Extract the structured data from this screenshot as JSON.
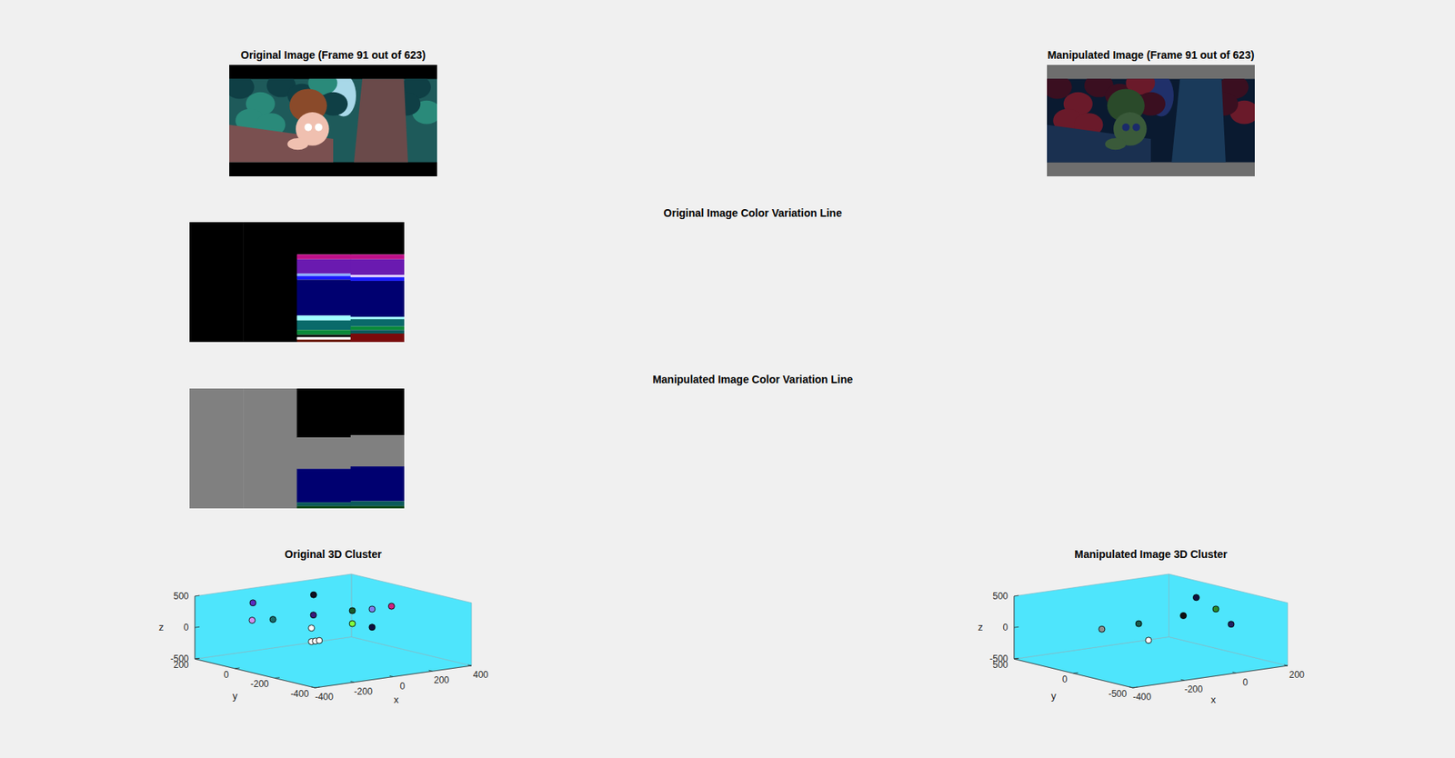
{
  "chart_data": [
    {
      "type": "image",
      "title": "Original Image (Frame 91 out of 623)"
    },
    {
      "type": "image",
      "title": "Manipulated Image (Frame 91 out of 623)"
    },
    {
      "type": "color_strip",
      "title": "Original Image Color Variation Line",
      "ylim": [
        0,
        100
      ],
      "tick_labels": false,
      "columns": [
        {
          "colors": [
            "#000000"
          ],
          "values": [
            100
          ]
        },
        {
          "colors": [
            "#000000"
          ],
          "values": [
            100
          ]
        },
        {
          "colors": [
            "#000000",
            "#c0108a",
            "#6a1ab0",
            "#8ab0ff",
            "#1a1aff",
            "#000070",
            "#a0ffff",
            "#0a6a6a",
            "#0a8a3a",
            "#000000",
            "#ffffff",
            "#6a1a0a"
          ],
          "values": [
            27,
            4,
            12,
            2,
            3,
            30,
            4,
            8,
            4,
            2,
            2,
            2
          ]
        },
        {
          "colors": [
            "#000000",
            "#c0108a",
            "#6a1ab0",
            "#e0d0ff",
            "#1a1aff",
            "#000070",
            "#a0ffff",
            "#0a6a6a",
            "#0a8a3a",
            "#0a5a5a",
            "#7a0a0a"
          ],
          "values": [
            27,
            4,
            13,
            2,
            3,
            30,
            2,
            6,
            3,
            3,
            7
          ]
        }
      ]
    },
    {
      "type": "color_strip",
      "title": "Manipulated Image Color Variation Line",
      "ylim": [
        0,
        100
      ],
      "tick_labels": false,
      "columns": [
        {
          "colors": [
            "#808080"
          ],
          "values": [
            100
          ]
        },
        {
          "colors": [
            "#808080"
          ],
          "values": [
            100
          ]
        },
        {
          "colors": [
            "#000000",
            "#808080",
            "#000070",
            "#0a5a5a",
            "#0a4a1a"
          ],
          "values": [
            41,
            26,
            28,
            3,
            2
          ]
        },
        {
          "colors": [
            "#000000",
            "#808080",
            "#000070",
            "#0a5a5a",
            "#0a4a1a"
          ],
          "values": [
            39,
            26,
            29,
            4,
            2
          ]
        }
      ]
    },
    {
      "type": "scatter3d",
      "title": "Original 3D Cluster",
      "xlabel": "x",
      "ylabel": "y",
      "zlabel": "z",
      "marker": "circle",
      "xlim": [
        -400,
        400
      ],
      "xticks": [
        -400,
        -200,
        0,
        200,
        400
      ],
      "ylim": [
        -400,
        200
      ],
      "yticks": [
        -400,
        -200,
        0,
        200
      ],
      "zlim": [
        -500,
        500
      ],
      "zticks": [
        -500,
        0,
        500
      ],
      "x": [
        -226,
        -230,
        -185,
        84,
        -101,
        -111,
        -111,
        -91,
        -71,
        98,
        199,
        298,
        98,
        199
      ],
      "y": [
        80,
        80,
        20,
        80,
        -100,
        -100,
        -100,
        -100,
        -100,
        -100,
        -100,
        -100,
        -100,
        -100
      ],
      "z": [
        408,
        133,
        172,
        400,
        297,
        94,
        -122,
        -122,
        -122,
        279,
        259,
        262,
        72,
        -29
      ],
      "colors": [
        "#5a2fc0",
        "#d090f0",
        "#1a6a6a",
        "#101020",
        "#3a1a7a",
        "#ffffff",
        "#ffffff",
        "#ffffff",
        "#ffffff",
        "#1a5a2a",
        "#8080f0",
        "#d02080",
        "#80ff40",
        "#101040"
      ]
    },
    {
      "type": "scatter3d",
      "title": "Manipulated Image 3D Cluster",
      "xlabel": "x",
      "ylabel": "y",
      "zlabel": "z",
      "marker": "circle",
      "xlim": [
        -400,
        200
      ],
      "xticks": [
        -400,
        -200,
        0,
        200
      ],
      "ylim": [
        -500,
        500
      ],
      "yticks": [
        -500,
        0,
        500
      ],
      "zlim": [
        -500,
        500
      ],
      "zticks": [
        -500,
        0,
        500
      ],
      "x": [
        -290,
        -147,
        76,
        26,
        152,
        119,
        -109
      ],
      "y": [
        0,
        0,
        0,
        0,
        0,
        -200,
        0
      ],
      "z": [
        139,
        142,
        428,
        169,
        200,
        69,
        -144
      ],
      "colors": [
        "#909090",
        "#1a5a4a",
        "#101040",
        "#101010",
        "#2a8a2a",
        "#202060",
        "#ffffff"
      ]
    }
  ]
}
